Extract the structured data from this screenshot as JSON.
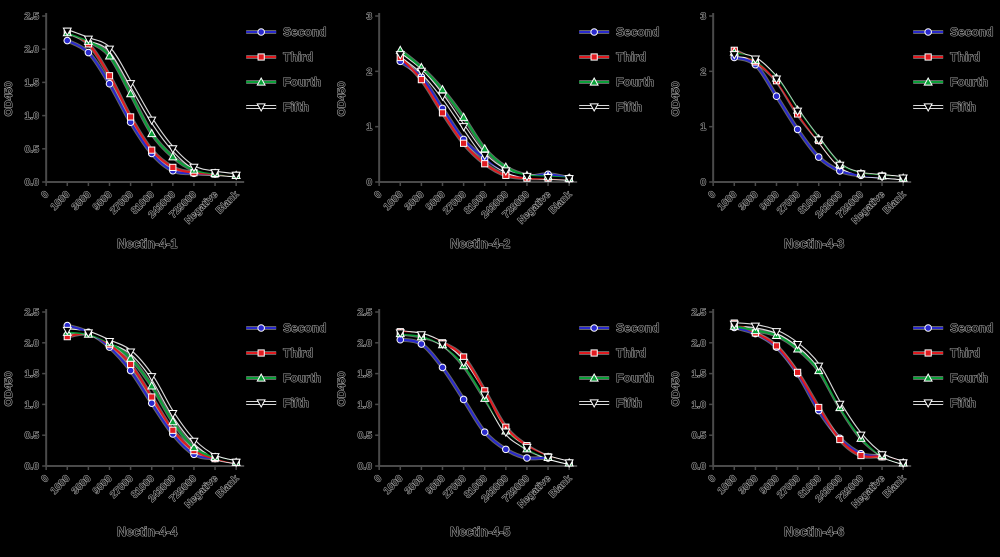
{
  "styles": {
    "background": "#000000",
    "axis_color": "#4a4a4a",
    "text_fill": "#0b0b0b",
    "text_halo": "#c9c9c9",
    "series_halo": "#ffffff",
    "blue": "#2929cc",
    "red": "#e01b20",
    "green": "#0a9f38",
    "black": "#000000"
  },
  "legend_labels": [
    "Second",
    "Third",
    "Fourth",
    "Fifth"
  ],
  "chart_data": [
    {
      "type": "line",
      "title": "Nectin-4-1",
      "ylabel": "OD450",
      "ylim": [
        0,
        2.5
      ],
      "ytick_step": 0.5,
      "x_tick_labels": [
        "0",
        "1000",
        "3000",
        "9000",
        "27000",
        "81000",
        "243000",
        "729000",
        "Negative",
        "Blank"
      ],
      "categories": [
        "1000",
        "3000",
        "9000",
        "27000",
        "81000",
        "243000",
        "729000",
        "Negative",
        "Blank"
      ],
      "legend_position": "right",
      "grid": false,
      "series": [
        {
          "name": "Second",
          "color": "#2929cc",
          "marker": "circle",
          "values": [
            2.13,
            1.95,
            1.48,
            0.9,
            0.43,
            0.17,
            0.13,
            0.12,
            0.1
          ]
        },
        {
          "name": "Third",
          "color": "#e01b20",
          "marker": "square",
          "values": [
            2.27,
            2.08,
            1.6,
            0.98,
            0.48,
            0.22,
            0.14,
            0.12,
            0.1
          ]
        },
        {
          "name": "Fourth",
          "color": "#0a9f38",
          "marker": "triangle-up",
          "values": [
            2.25,
            2.12,
            1.9,
            1.33,
            0.73,
            0.38,
            0.18,
            0.13,
            0.1
          ]
        },
        {
          "name": "Fifth",
          "color": "#000000",
          "marker": "triangle-down",
          "values": [
            2.27,
            2.15,
            2.0,
            1.48,
            0.93,
            0.5,
            0.22,
            0.14,
            0.1
          ]
        }
      ]
    },
    {
      "type": "line",
      "title": "Nectin-4-2",
      "ylabel": "OD450",
      "ylim": [
        0,
        3
      ],
      "ytick_step": 1,
      "x_tick_labels": [
        "0",
        "1000",
        "3000",
        "9000",
        "27000",
        "81000",
        "243000",
        "729000",
        "Negative",
        "Blank"
      ],
      "categories": [
        "1000",
        "3000",
        "9000",
        "27000",
        "81000",
        "243000",
        "729000",
        "Negative",
        "Blank"
      ],
      "legend_position": "right",
      "grid": false,
      "series": [
        {
          "name": "Second",
          "color": "#2929cc",
          "marker": "circle",
          "values": [
            2.18,
            1.9,
            1.33,
            0.77,
            0.43,
            0.2,
            0.1,
            0.14,
            0.07
          ]
        },
        {
          "name": "Third",
          "color": "#e01b20",
          "marker": "square",
          "values": [
            2.25,
            1.85,
            1.25,
            0.7,
            0.33,
            0.12,
            0.07,
            0.07,
            0.06
          ]
        },
        {
          "name": "Fourth",
          "color": "#0a9f38",
          "marker": "triangle-up",
          "values": [
            2.38,
            2.07,
            1.67,
            1.17,
            0.6,
            0.27,
            0.12,
            0.1,
            0.07
          ]
        },
        {
          "name": "Fifth",
          "color": "#000000",
          "marker": "triangle-down",
          "values": [
            2.3,
            2.0,
            1.55,
            1.0,
            0.48,
            0.2,
            0.1,
            0.08,
            0.06
          ]
        }
      ]
    },
    {
      "type": "line",
      "title": "Nectin-4-3",
      "ylabel": "OD450",
      "ylim": [
        0,
        3
      ],
      "ytick_step": 1,
      "x_tick_labels": [
        "0",
        "1000",
        "3000",
        "9000",
        "27000",
        "81000",
        "243000",
        "729000",
        "Negative",
        "Blank"
      ],
      "categories": [
        "1000",
        "3000",
        "9000",
        "27000",
        "81000",
        "243000",
        "729000",
        "Negative",
        "Blank"
      ],
      "legend_position": "right",
      "grid": false,
      "series": [
        {
          "name": "Second",
          "color": "#2929cc",
          "marker": "circle",
          "values": [
            2.25,
            2.12,
            1.55,
            0.95,
            0.45,
            0.2,
            0.12,
            0.1,
            0.07
          ]
        },
        {
          "name": "Third",
          "color": "#e01b20",
          "marker": "square",
          "values": [
            2.38,
            2.17,
            1.83,
            1.23,
            0.75,
            0.3,
            0.15,
            0.11,
            0.07
          ]
        },
        {
          "name": "Fourth",
          "color": "#0a9f38",
          "marker": "triangle-up",
          "values": [
            2.35,
            2.2,
            1.88,
            1.3,
            0.78,
            0.32,
            0.15,
            0.11,
            0.07
          ]
        },
        {
          "name": "Fifth",
          "color": "#000000",
          "marker": "triangle-down",
          "values": [
            2.3,
            2.22,
            1.86,
            1.28,
            0.76,
            0.3,
            0.14,
            0.1,
            0.07
          ]
        }
      ]
    },
    {
      "type": "line",
      "title": "Nectin-4-4",
      "ylabel": "OD450",
      "ylim": [
        0,
        2.5
      ],
      "ytick_step": 0.5,
      "x_tick_labels": [
        "0",
        "1000",
        "3000",
        "9000",
        "27000",
        "81000",
        "243000",
        "729000",
        "Negative",
        "Blank"
      ],
      "categories": [
        "1000",
        "3000",
        "9000",
        "27000",
        "81000",
        "243000",
        "729000",
        "Negative",
        "Blank"
      ],
      "legend_position": "right",
      "grid": false,
      "series": [
        {
          "name": "Second",
          "color": "#2929cc",
          "marker": "circle",
          "values": [
            2.28,
            2.17,
            1.93,
            1.55,
            1.02,
            0.52,
            0.19,
            0.12,
            0.06
          ]
        },
        {
          "name": "Third",
          "color": "#e01b20",
          "marker": "square",
          "values": [
            2.1,
            2.15,
            1.97,
            1.65,
            1.12,
            0.58,
            0.25,
            0.12,
            0.06
          ]
        },
        {
          "name": "Fourth",
          "color": "#0a9f38",
          "marker": "triangle-up",
          "values": [
            2.17,
            2.14,
            2.0,
            1.75,
            1.3,
            0.72,
            0.3,
            0.14,
            0.06
          ]
        },
        {
          "name": "Fifth",
          "color": "#000000",
          "marker": "triangle-down",
          "values": [
            2.2,
            2.16,
            2.02,
            1.85,
            1.45,
            0.85,
            0.4,
            0.15,
            0.06
          ]
        }
      ]
    },
    {
      "type": "line",
      "title": "Nectin-4-5",
      "ylabel": "OD450",
      "ylim": [
        0,
        2.5
      ],
      "ytick_step": 0.5,
      "x_tick_labels": [
        "0",
        "1000",
        "3000",
        "9000",
        "27000",
        "81000",
        "243000",
        "729000",
        "Negative",
        "Blank"
      ],
      "categories": [
        "1000",
        "3000",
        "9000",
        "27000",
        "81000",
        "243000",
        "729000",
        "Negative",
        "Blank"
      ],
      "legend_position": "right",
      "grid": false,
      "series": [
        {
          "name": "Second",
          "color": "#2929cc",
          "marker": "circle",
          "values": [
            2.05,
            1.98,
            1.6,
            1.08,
            0.55,
            0.27,
            0.13,
            0.13,
            0.05
          ]
        },
        {
          "name": "Third",
          "color": "#e01b20",
          "marker": "square",
          "values": [
            2.18,
            2.12,
            2.0,
            1.77,
            1.22,
            0.63,
            0.33,
            0.15,
            0.05
          ]
        },
        {
          "name": "Fourth",
          "color": "#0a9f38",
          "marker": "triangle-up",
          "values": [
            2.15,
            2.1,
            1.97,
            1.63,
            1.1,
            0.57,
            0.28,
            0.14,
            0.05
          ]
        },
        {
          "name": "Fifth",
          "color": "#000000",
          "marker": "triangle-down",
          "values": [
            2.16,
            2.13,
            1.98,
            1.68,
            1.15,
            0.55,
            0.3,
            0.14,
            0.05
          ]
        }
      ]
    },
    {
      "type": "line",
      "title": "Nectin-4-6",
      "ylabel": "OD450",
      "ylim": [
        0,
        2.5
      ],
      "ytick_step": 0.5,
      "x_tick_labels": [
        "0",
        "1000",
        "3000",
        "9000",
        "27000",
        "81000",
        "243000",
        "729000",
        "Negative",
        "Blank"
      ],
      "categories": [
        "1000",
        "3000",
        "9000",
        "27000",
        "81000",
        "243000",
        "729000",
        "Negative",
        "Blank"
      ],
      "legend_position": "right",
      "grid": false,
      "series": [
        {
          "name": "Second",
          "color": "#2929cc",
          "marker": "circle",
          "values": [
            2.25,
            2.15,
            1.93,
            1.5,
            0.9,
            0.45,
            0.2,
            0.15,
            0.05
          ]
        },
        {
          "name": "Third",
          "color": "#e01b20",
          "marker": "square",
          "values": [
            2.32,
            2.16,
            1.95,
            1.52,
            0.95,
            0.43,
            0.17,
            0.15,
            0.05
          ]
        },
        {
          "name": "Fourth",
          "color": "#0a9f38",
          "marker": "triangle-up",
          "values": [
            2.27,
            2.2,
            2.12,
            1.9,
            1.55,
            0.95,
            0.45,
            0.17,
            0.05
          ]
        },
        {
          "name": "Fifth",
          "color": "#000000",
          "marker": "triangle-down",
          "values": [
            2.3,
            2.27,
            2.18,
            1.97,
            1.62,
            1.0,
            0.5,
            0.18,
            0.05
          ]
        }
      ]
    }
  ]
}
